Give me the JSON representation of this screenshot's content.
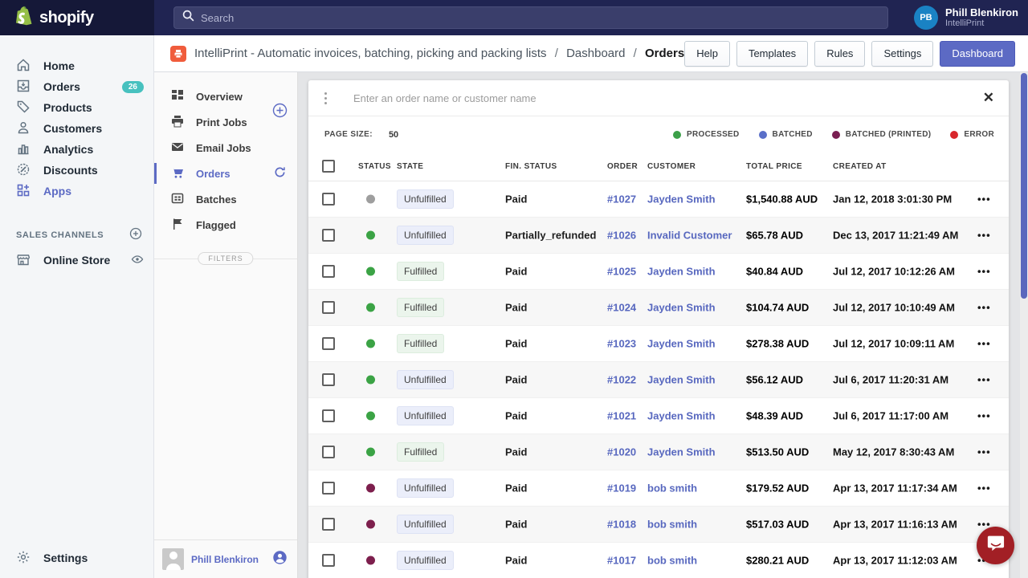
{
  "topbar": {
    "logo_text": "shopify",
    "search_placeholder": "Search",
    "user_initials": "PB",
    "user_name": "Phill Blenkiron",
    "user_org": "IntelliPrint"
  },
  "sidebar": {
    "items": [
      {
        "label": "Home"
      },
      {
        "label": "Orders",
        "badge": "26"
      },
      {
        "label": "Products"
      },
      {
        "label": "Customers"
      },
      {
        "label": "Analytics"
      },
      {
        "label": "Discounts"
      },
      {
        "label": "Apps",
        "active": true
      }
    ],
    "sales_channels_label": "SALES CHANNELS",
    "online_store_label": "Online Store",
    "settings_label": "Settings"
  },
  "header": {
    "app_title": "IntelliPrint - Automatic invoices, batching, picking and packing lists",
    "sep1": "/",
    "breadcrumb_dashboard": "Dashboard",
    "sep2": "/",
    "breadcrumb_orders": "Orders",
    "btn_help": "Help",
    "btn_templates": "Templates",
    "btn_rules": "Rules",
    "btn_settings": "Settings",
    "btn_dashboard": "Dashboard"
  },
  "app_nav": {
    "items": [
      {
        "label": "Overview"
      },
      {
        "label": "Print Jobs"
      },
      {
        "label": "Email Jobs"
      },
      {
        "label": "Orders",
        "active": true
      },
      {
        "label": "Batches"
      },
      {
        "label": "Flagged"
      }
    ],
    "filters_label": "FILTERS",
    "footer_user": "Phill Blenkiron"
  },
  "panel": {
    "search_placeholder": "Enter an order name or customer name",
    "close_glyph": "✕",
    "page_size_label": "PAGE SIZE:",
    "page_size_value": "50",
    "legend": [
      {
        "label": "PROCESSED",
        "color": "#3ca049"
      },
      {
        "label": "BATCHED",
        "color": "#5a6fc8"
      },
      {
        "label": "BATCHED (PRINTED)",
        "color": "#7a1f52"
      },
      {
        "label": "ERROR",
        "color": "#d8262c"
      }
    ]
  },
  "table": {
    "columns": [
      "STATUS",
      "STATE",
      "FIN. STATUS",
      "ORDER",
      "CUSTOMER",
      "TOTAL PRICE",
      "CREATED AT"
    ],
    "status_colors": {
      "gray": "#9e9e9e",
      "green": "#3ba345",
      "plum": "#7d1f4d"
    },
    "kebab_glyph": "•••",
    "rows": [
      {
        "status": "gray",
        "state": "Unfulfilled",
        "fin": "Paid",
        "order": "#1027",
        "customer": "Jayden Smith",
        "total": "$1,540.88 AUD",
        "created": "Jan 12, 2018 3:01:30 PM"
      },
      {
        "status": "green",
        "state": "Unfulfilled",
        "fin": "Partially_refunded",
        "order": "#1026",
        "customer": "Invalid Customer",
        "total": "$65.78 AUD",
        "created": "Dec 13, 2017 11:21:49 AM"
      },
      {
        "status": "green",
        "state": "Fulfilled",
        "fin": "Paid",
        "order": "#1025",
        "customer": "Jayden Smith",
        "total": "$40.84 AUD",
        "created": "Jul 12, 2017 10:12:26 AM"
      },
      {
        "status": "green",
        "state": "Fulfilled",
        "fin": "Paid",
        "order": "#1024",
        "customer": "Jayden Smith",
        "total": "$104.74 AUD",
        "created": "Jul 12, 2017 10:10:49 AM"
      },
      {
        "status": "green",
        "state": "Fulfilled",
        "fin": "Paid",
        "order": "#1023",
        "customer": "Jayden Smith",
        "total": "$278.38 AUD",
        "created": "Jul 12, 2017 10:09:11 AM"
      },
      {
        "status": "green",
        "state": "Unfulfilled",
        "fin": "Paid",
        "order": "#1022",
        "customer": "Jayden Smith",
        "total": "$56.12 AUD",
        "created": "Jul 6, 2017 11:20:31 AM"
      },
      {
        "status": "green",
        "state": "Unfulfilled",
        "fin": "Paid",
        "order": "#1021",
        "customer": "Jayden Smith",
        "total": "$48.39 AUD",
        "created": "Jul 6, 2017 11:17:00 AM"
      },
      {
        "status": "green",
        "state": "Fulfilled",
        "fin": "Paid",
        "order": "#1020",
        "customer": "Jayden Smith",
        "total": "$513.50 AUD",
        "created": "May 12, 2017 8:30:43 AM"
      },
      {
        "status": "plum",
        "state": "Unfulfilled",
        "fin": "Paid",
        "order": "#1019",
        "customer": "bob smith",
        "total": "$179.52 AUD",
        "created": "Apr 13, 2017 11:17:34 AM"
      },
      {
        "status": "plum",
        "state": "Unfulfilled",
        "fin": "Paid",
        "order": "#1018",
        "customer": "bob smith",
        "total": "$517.03 AUD",
        "created": "Apr 13, 2017 11:16:13 AM"
      },
      {
        "status": "plum",
        "state": "Unfulfilled",
        "fin": "Paid",
        "order": "#1017",
        "customer": "bob smith",
        "total": "$280.21 AUD",
        "created": "Apr 13, 2017 11:12:03 AM"
      }
    ]
  }
}
